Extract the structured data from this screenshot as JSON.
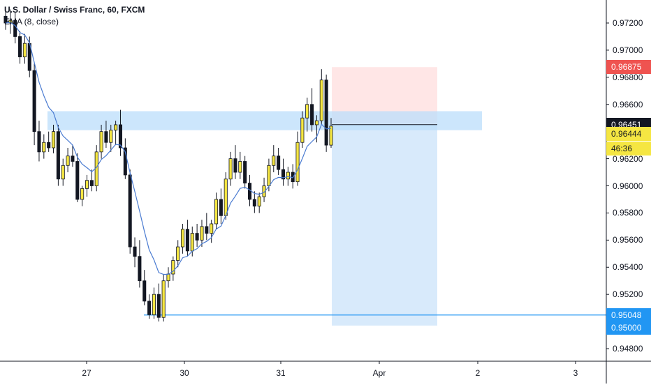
{
  "header": {
    "symbol_title": "U.S. Dollar / Swiss Franc, 60, FXCM",
    "indicator": "EMA (8, close)"
  },
  "price_axis": {
    "ticks": [
      "0.97200",
      "0.97000",
      "0.96800",
      "0.96600",
      "0.96400",
      "0.96200",
      "0.96000",
      "0.95800",
      "0.95600",
      "0.95400",
      "0.95200",
      "0.95000",
      "0.94800"
    ],
    "labels": [
      {
        "text": "0.96875",
        "bg": "#ef5350",
        "fg": "#ffffff"
      },
      {
        "text": "0.96451",
        "bg": "#131722",
        "fg": "#ffffff"
      },
      {
        "text": "0.96444",
        "bg": "#f5e642",
        "fg": "#131722"
      },
      {
        "text": "46:36",
        "bg": "#f5e642",
        "fg": "#131722"
      },
      {
        "text": "0.95048",
        "bg": "#2196f3",
        "fg": "#ffffff"
      },
      {
        "text": "0.95000",
        "bg": "#2196f3",
        "fg": "#ffffff"
      }
    ]
  },
  "time_axis": {
    "ticks": [
      "27",
      "30",
      "31",
      "Apr",
      "2",
      "3"
    ]
  },
  "colors": {
    "bull_body": "#f5e642",
    "bear_body": "#131722",
    "ema": "#4a7bd1",
    "zone_fill": "#bbdefb",
    "stop_zone": "#ffe3e3",
    "target_zone": "#d6e9fb",
    "support_line": "#2196f3"
  },
  "chart_data": {
    "type": "candlestick",
    "title": "U.S. Dollar / Swiss Franc, 60, FXCM",
    "ylim": [
      0.947,
      0.9735
    ],
    "x": [
      "27",
      "30",
      "31",
      "Apr",
      "2",
      "3"
    ],
    "candles": [
      [
        0.9725,
        0.9732,
        0.9715,
        0.972
      ],
      [
        0.972,
        0.973,
        0.9712,
        0.9722
      ],
      [
        0.9722,
        0.9728,
        0.9705,
        0.971
      ],
      [
        0.971,
        0.9714,
        0.969,
        0.9695
      ],
      [
        0.9695,
        0.9712,
        0.969,
        0.9705
      ],
      [
        0.9705,
        0.971,
        0.968,
        0.9685
      ],
      [
        0.9685,
        0.969,
        0.963,
        0.964
      ],
      [
        0.964,
        0.9648,
        0.9618,
        0.9625
      ],
      [
        0.9625,
        0.9638,
        0.962,
        0.9632
      ],
      [
        0.9632,
        0.964,
        0.9625,
        0.9628
      ],
      [
        0.9628,
        0.9645,
        0.9624,
        0.964
      ],
      [
        0.964,
        0.9645,
        0.96,
        0.9605
      ],
      [
        0.9605,
        0.962,
        0.96,
        0.9615
      ],
      [
        0.9615,
        0.9628,
        0.961,
        0.9622
      ],
      [
        0.9622,
        0.963,
        0.9614,
        0.9618
      ],
      [
        0.9618,
        0.9624,
        0.9588,
        0.959
      ],
      [
        0.959,
        0.96,
        0.9585,
        0.9598
      ],
      [
        0.9598,
        0.9608,
        0.9592,
        0.9604
      ],
      [
        0.9604,
        0.9612,
        0.9596,
        0.96
      ],
      [
        0.96,
        0.963,
        0.9596,
        0.9625
      ],
      [
        0.9625,
        0.9645,
        0.962,
        0.964
      ],
      [
        0.964,
        0.9648,
        0.9628,
        0.9632
      ],
      [
        0.9632,
        0.9645,
        0.9625,
        0.9641
      ],
      [
        0.9641,
        0.9648,
        0.963,
        0.9645
      ],
      [
        0.9645,
        0.9656,
        0.9622,
        0.9628
      ],
      [
        0.9628,
        0.9635,
        0.9605,
        0.9608
      ],
      [
        0.9608,
        0.9612,
        0.955,
        0.9555
      ],
      [
        0.9555,
        0.9562,
        0.954,
        0.9548
      ],
      [
        0.9548,
        0.956,
        0.9525,
        0.953
      ],
      [
        0.953,
        0.9538,
        0.9512,
        0.9515
      ],
      [
        0.9515,
        0.952,
        0.9502,
        0.9505
      ],
      [
        0.9505,
        0.9525,
        0.9502,
        0.952
      ],
      [
        0.952,
        0.9528,
        0.95,
        0.9503
      ],
      [
        0.9503,
        0.9535,
        0.95,
        0.953
      ],
      [
        0.953,
        0.954,
        0.9525,
        0.9535
      ],
      [
        0.9535,
        0.9548,
        0.953,
        0.9545
      ],
      [
        0.9545,
        0.956,
        0.954,
        0.9555
      ],
      [
        0.9555,
        0.9572,
        0.955,
        0.9568
      ],
      [
        0.9568,
        0.9575,
        0.9548,
        0.9552
      ],
      [
        0.9552,
        0.957,
        0.9548,
        0.9565
      ],
      [
        0.9565,
        0.9572,
        0.9555,
        0.956
      ],
      [
        0.956,
        0.9575,
        0.9555,
        0.957
      ],
      [
        0.957,
        0.958,
        0.956,
        0.9565
      ],
      [
        0.9565,
        0.9575,
        0.9558,
        0.9572
      ],
      [
        0.9572,
        0.9595,
        0.9568,
        0.959
      ],
      [
        0.959,
        0.9598,
        0.9572,
        0.9578
      ],
      [
        0.9578,
        0.961,
        0.9575,
        0.9605
      ],
      [
        0.9605,
        0.9625,
        0.96,
        0.962
      ],
      [
        0.962,
        0.963,
        0.9605,
        0.961
      ],
      [
        0.961,
        0.9625,
        0.9605,
        0.9618
      ],
      [
        0.9618,
        0.9622,
        0.9598,
        0.9602
      ],
      [
        0.9602,
        0.9608,
        0.9585,
        0.959
      ],
      [
        0.959,
        0.9596,
        0.958,
        0.9585
      ],
      [
        0.9585,
        0.9595,
        0.958,
        0.9592
      ],
      [
        0.9592,
        0.9606,
        0.9588,
        0.96
      ],
      [
        0.96,
        0.962,
        0.9596,
        0.9615
      ],
      [
        0.9615,
        0.963,
        0.961,
        0.9622
      ],
      [
        0.9622,
        0.9628,
        0.9608,
        0.9612
      ],
      [
        0.9612,
        0.962,
        0.96,
        0.9605
      ],
      [
        0.9605,
        0.9614,
        0.96,
        0.961
      ],
      [
        0.961,
        0.9616,
        0.9598,
        0.9603
      ],
      [
        0.9603,
        0.964,
        0.96,
        0.9632
      ],
      [
        0.9632,
        0.9655,
        0.9628,
        0.965
      ],
      [
        0.965,
        0.9665,
        0.964,
        0.966
      ],
      [
        0.966,
        0.9672,
        0.964,
        0.9645
      ],
      [
        0.9645,
        0.9652,
        0.9632,
        0.9648
      ],
      [
        0.9648,
        0.9686,
        0.9645,
        0.9678
      ],
      [
        0.9678,
        0.9682,
        0.9625,
        0.963
      ],
      [
        0.963,
        0.965,
        0.9628,
        0.9644
      ]
    ],
    "ema_period": 8
  },
  "trade_setup": {
    "resistance_zone": [
      0.9641,
      0.9655
    ],
    "entry": 0.96451,
    "stop": 0.96875,
    "target": 0.95,
    "support_line": 0.95048
  }
}
